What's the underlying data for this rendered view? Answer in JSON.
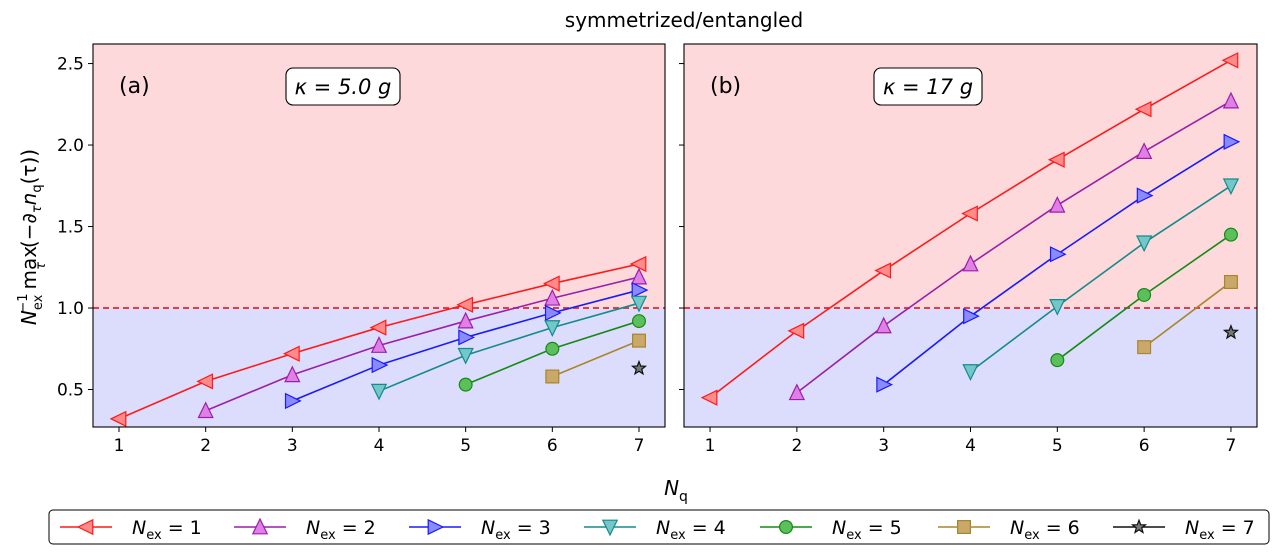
{
  "suptitle": "symmetrized/entangled",
  "xlabel": "N",
  "xlabel_sub": "q",
  "ylabel_parts": {
    "pre": "N",
    "pre_sub": "ex",
    "pre_sup": "−1",
    "max": "max",
    "max_sub": "τ",
    "body": "(−∂",
    "body_sub": "τ",
    "body2": "n",
    "body2_sub": "q",
    "body3": "(τ))"
  },
  "threshold": 1.0,
  "colors": {
    "above_region": "#fdd9dc",
    "below_region": "#dcdcfd",
    "threshold_line": "#e8232a"
  },
  "chart_data": [
    {
      "type": "line",
      "panel": "(a)",
      "annotation": "κ = 5.0 g",
      "xlim": [
        0.7,
        7.3
      ],
      "ylim": [
        0.27,
        2.62
      ],
      "xticks": [
        1,
        2,
        3,
        4,
        5,
        6,
        7
      ],
      "yticks": [
        0.5,
        1.0,
        1.5,
        2.0,
        2.5
      ],
      "ytick_labels": [
        "0.5",
        "1.0",
        "1.5",
        "2.0",
        "2.5"
      ],
      "series": [
        {
          "name": "N_ex = 1",
          "color": "#ff1a1a",
          "fill": "#ff8a8a",
          "marker": "triangle-left",
          "x": [
            1,
            2,
            3,
            4,
            5,
            6,
            7
          ],
          "y": [
            0.32,
            0.55,
            0.72,
            0.88,
            1.02,
            1.15,
            1.27
          ]
        },
        {
          "name": "N_ex = 2",
          "color": "#9b1fa8",
          "fill": "#e080e6",
          "marker": "triangle-up",
          "x": [
            2,
            3,
            4,
            5,
            6,
            7
          ],
          "y": [
            0.37,
            0.59,
            0.77,
            0.92,
            1.06,
            1.19
          ]
        },
        {
          "name": "N_ex = 3",
          "color": "#1a1aff",
          "fill": "#8a8aff",
          "marker": "triangle-right",
          "x": [
            3,
            4,
            5,
            6,
            7
          ],
          "y": [
            0.43,
            0.65,
            0.82,
            0.97,
            1.11
          ]
        },
        {
          "name": "N_ex = 4",
          "color": "#158a8a",
          "fill": "#72c8c8",
          "marker": "triangle-down",
          "x": [
            4,
            5,
            6,
            7
          ],
          "y": [
            0.49,
            0.71,
            0.88,
            1.03
          ]
        },
        {
          "name": "N_ex = 5",
          "color": "#158a15",
          "fill": "#5cbf5c",
          "marker": "circle",
          "x": [
            5,
            6,
            7
          ],
          "y": [
            0.53,
            0.75,
            0.92
          ]
        },
        {
          "name": "N_ex = 6",
          "color": "#a8862a",
          "fill": "#c9a86a",
          "marker": "square",
          "x": [
            6,
            7
          ],
          "y": [
            0.58,
            0.8
          ]
        },
        {
          "name": "N_ex = 7",
          "color": "#111111",
          "fill": "#777777",
          "marker": "star",
          "x": [
            7
          ],
          "y": [
            0.63
          ]
        }
      ]
    },
    {
      "type": "line",
      "panel": "(b)",
      "annotation": "κ = 17 g",
      "xlim": [
        0.7,
        7.3
      ],
      "ylim": [
        0.27,
        2.62
      ],
      "xticks": [
        1,
        2,
        3,
        4,
        5,
        6,
        7
      ],
      "yticks": [
        0.5,
        1.0,
        1.5,
        2.0,
        2.5
      ],
      "ytick_labels": [],
      "series": [
        {
          "name": "N_ex = 1",
          "color": "#ff1a1a",
          "fill": "#ff8a8a",
          "marker": "triangle-left",
          "x": [
            1,
            2,
            3,
            4,
            5,
            6,
            7
          ],
          "y": [
            0.45,
            0.86,
            1.23,
            1.58,
            1.91,
            2.22,
            2.52
          ]
        },
        {
          "name": "N_ex = 2",
          "color": "#9b1fa8",
          "fill": "#e080e6",
          "marker": "triangle-up",
          "x": [
            2,
            3,
            4,
            5,
            6,
            7
          ],
          "y": [
            0.48,
            0.89,
            1.27,
            1.63,
            1.96,
            2.27
          ]
        },
        {
          "name": "N_ex = 3",
          "color": "#1a1aff",
          "fill": "#8a8aff",
          "marker": "triangle-right",
          "x": [
            3,
            4,
            5,
            6,
            7
          ],
          "y": [
            0.53,
            0.95,
            1.33,
            1.69,
            2.02
          ]
        },
        {
          "name": "N_ex = 4",
          "color": "#158a8a",
          "fill": "#72c8c8",
          "marker": "triangle-down",
          "x": [
            4,
            5,
            6,
            7
          ],
          "y": [
            0.61,
            1.01,
            1.4,
            1.75
          ]
        },
        {
          "name": "N_ex = 5",
          "color": "#158a15",
          "fill": "#5cbf5c",
          "marker": "circle",
          "x": [
            5,
            6,
            7
          ],
          "y": [
            0.68,
            1.08,
            1.45
          ]
        },
        {
          "name": "N_ex = 6",
          "color": "#a8862a",
          "fill": "#c9a86a",
          "marker": "square",
          "x": [
            6,
            7
          ],
          "y": [
            0.76,
            1.16
          ]
        },
        {
          "name": "N_ex = 7",
          "color": "#111111",
          "fill": "#777777",
          "marker": "star",
          "x": [
            7
          ],
          "y": [
            0.85
          ]
        }
      ]
    }
  ],
  "legend": [
    {
      "label": "N",
      "sub": "ex",
      "value": " = 1"
    },
    {
      "label": "N",
      "sub": "ex",
      "value": " = 2"
    },
    {
      "label": "N",
      "sub": "ex",
      "value": " = 3"
    },
    {
      "label": "N",
      "sub": "ex",
      "value": " = 4"
    },
    {
      "label": "N",
      "sub": "ex",
      "value": " = 5"
    },
    {
      "label": "N",
      "sub": "ex",
      "value": " = 6"
    },
    {
      "label": "N",
      "sub": "ex",
      "value": " = 7"
    }
  ]
}
